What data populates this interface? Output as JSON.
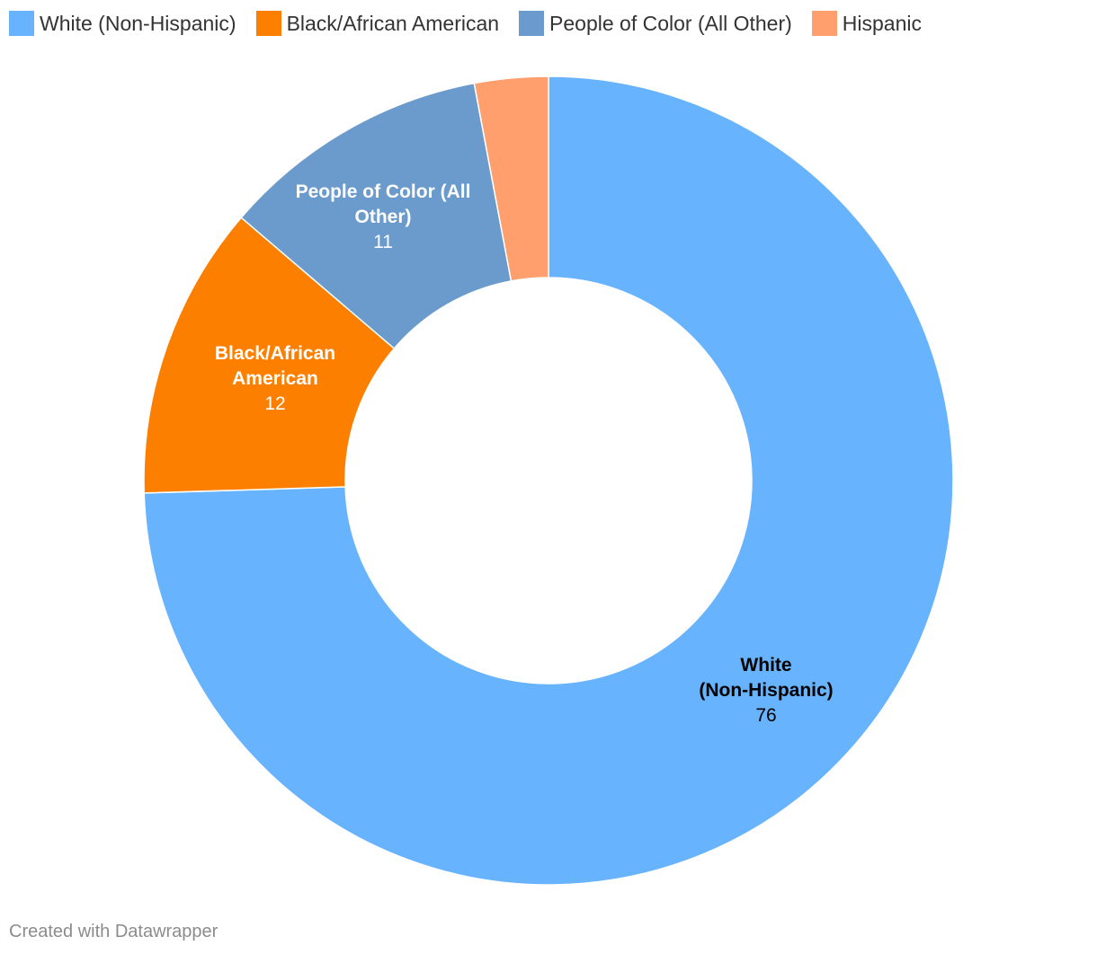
{
  "chart_data": {
    "type": "pie",
    "donut": true,
    "legend_position": "top-left",
    "slices": [
      {
        "label": "White (Non-Hispanic)",
        "value": 76,
        "color": "#67b3fd"
      },
      {
        "label": "Black/African American",
        "value": 12,
        "color": "#fd7f00"
      },
      {
        "label": "People of Color (All Other)",
        "value": 11,
        "color": "#6a9bcc"
      },
      {
        "label": "Hispanic",
        "value": 3,
        "color": "#fe9f6d"
      }
    ],
    "data_labels": [
      {
        "name_lines": [
          "White",
          "(Non-Hispanic)"
        ],
        "value": "76",
        "text_color": "#000000"
      },
      {
        "name_lines": [
          "Black/African",
          "American"
        ],
        "value": "12",
        "text_color": "#ffffff"
      },
      {
        "name_lines": [
          "People of Color (All",
          "Other)"
        ],
        "value": "11",
        "text_color": "#ffffff"
      },
      null
    ]
  },
  "footer": {
    "credit": "Created with Datawrapper"
  }
}
